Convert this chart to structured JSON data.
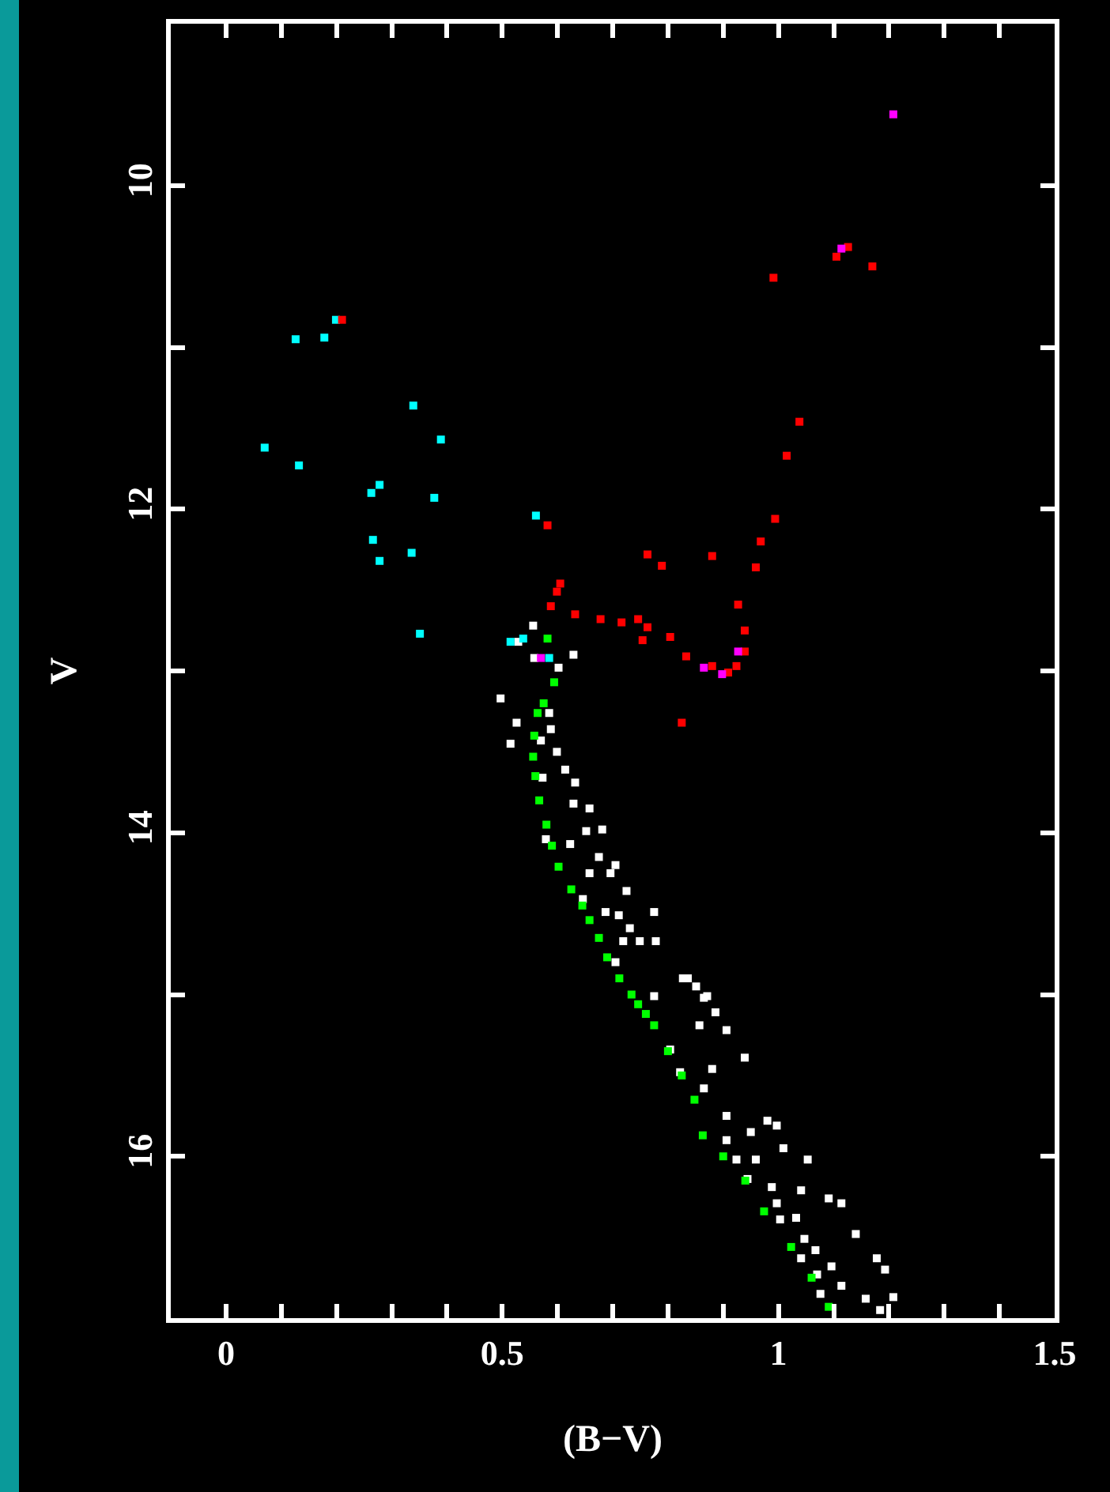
{
  "chart_data": {
    "type": "scatter",
    "xlabel": "(B−V)",
    "ylabel": "V",
    "xlim": [
      -0.1,
      1.5
    ],
    "ylim": [
      17,
      9
    ],
    "xticks": [
      {
        "value": -0.1,
        "label": null
      },
      0,
      {
        "value": 0.1,
        "label": null
      },
      {
        "value": 0.2,
        "label": null
      },
      {
        "value": 0.3,
        "label": null
      },
      {
        "value": 0.4,
        "label": null
      },
      0.5,
      {
        "value": 0.6,
        "label": null
      },
      {
        "value": 0.7,
        "label": null
      },
      {
        "value": 0.8,
        "label": null
      },
      {
        "value": 0.9,
        "label": null
      },
      1,
      {
        "value": 1.1,
        "label": null
      },
      {
        "value": 1.2,
        "label": null
      },
      {
        "value": 1.3,
        "label": null
      },
      {
        "value": 1.4,
        "label": null
      },
      1.5
    ],
    "yticks": [
      10,
      {
        "value": 11,
        "label": null
      },
      12,
      {
        "value": 13,
        "label": null
      },
      14,
      {
        "value": 15,
        "label": null
      },
      16
    ],
    "marker": "square",
    "series": [
      {
        "color": "#ffffff",
        "x": [
          0.556,
          0.529,
          0.558,
          0.629,
          0.602,
          0.497,
          0.585,
          0.588,
          0.526,
          0.515,
          0.57,
          0.599,
          0.614,
          0.632,
          0.573,
          0.629,
          0.658,
          0.652,
          0.681,
          0.579,
          0.623,
          0.675,
          0.705,
          0.696,
          0.658,
          0.725,
          0.646,
          0.687,
          0.711,
          0.775,
          0.731,
          0.719,
          0.749,
          0.778,
          0.705,
          0.836,
          0.851,
          0.775,
          0.865,
          0.827,
          0.871,
          0.886,
          0.857,
          0.906,
          0.804,
          0.939,
          0.88,
          0.822,
          0.865,
          0.906,
          0.98,
          0.997,
          0.906,
          0.95,
          1.009,
          0.924,
          0.959,
          1.053,
          0.944,
          0.988,
          1.041,
          1.091,
          0.997,
          1.114,
          1.003,
          1.032,
          1.14,
          1.047,
          1.067,
          1.041,
          1.178,
          1.096,
          1.193,
          1.07,
          1.114,
          1.158,
          1.208,
          1.076,
          1.184
        ],
        "values": [
          12.72,
          12.82,
          12.92,
          12.9,
          12.98,
          13.17,
          13.26,
          13.36,
          13.32,
          13.45,
          13.43,
          13.5,
          13.61,
          13.69,
          13.66,
          13.82,
          13.85,
          13.99,
          13.98,
          14.04,
          14.07,
          14.15,
          14.2,
          14.25,
          14.25,
          14.36,
          14.41,
          14.49,
          14.51,
          14.49,
          14.59,
          14.67,
          14.67,
          14.67,
          14.8,
          14.9,
          14.95,
          15.01,
          15.02,
          14.9,
          15.01,
          15.11,
          15.19,
          15.22,
          15.34,
          15.39,
          15.46,
          15.48,
          15.58,
          15.75,
          15.78,
          15.81,
          15.9,
          15.85,
          15.95,
          16.02,
          16.02,
          16.02,
          16.14,
          16.19,
          16.21,
          16.26,
          16.29,
          16.29,
          16.39,
          16.38,
          16.48,
          16.51,
          16.58,
          16.63,
          16.63,
          16.68,
          16.7,
          16.73,
          16.8,
          16.88,
          16.87,
          16.85,
          16.95
        ]
      },
      {
        "color": "#00ff00",
        "x": [
          0.582,
          0.594,
          0.575,
          0.564,
          0.558,
          0.556,
          0.56,
          0.567,
          0.58,
          0.59,
          0.602,
          0.625,
          0.645,
          0.658,
          0.675,
          0.69,
          0.712,
          0.734,
          0.746,
          0.76,
          0.775,
          0.8,
          0.825,
          0.848,
          0.863,
          0.9,
          0.94,
          0.974,
          1.023,
          1.06,
          1.091
        ],
        "values": [
          12.8,
          13.07,
          13.2,
          13.26,
          13.4,
          13.53,
          13.65,
          13.8,
          13.95,
          14.08,
          14.21,
          14.35,
          14.45,
          14.54,
          14.65,
          14.77,
          14.9,
          15.0,
          15.06,
          15.12,
          15.19,
          15.35,
          15.5,
          15.65,
          15.87,
          16.0,
          16.15,
          16.34,
          16.56,
          16.75,
          16.93
        ]
      },
      {
        "color": "#00ffff",
        "x": [
          0.126,
          0.178,
          0.199,
          0.339,
          0.389,
          0.07,
          0.132,
          0.278,
          0.263,
          0.377,
          0.561,
          0.266,
          0.336,
          0.278,
          0.351,
          0.515,
          0.538,
          0.585
        ],
        "values": [
          10.95,
          10.94,
          10.83,
          11.36,
          11.57,
          11.62,
          11.73,
          11.85,
          11.9,
          11.93,
          12.04,
          12.19,
          12.27,
          12.32,
          12.77,
          12.82,
          12.8,
          12.92
        ]
      },
      {
        "color": "#ff0000",
        "x": [
          1.126,
          1.105,
          1.17,
          0.991,
          1.038,
          1.015,
          0.994,
          0.968,
          0.582,
          0.763,
          0.789,
          0.88,
          0.959,
          0.605,
          0.599,
          0.927,
          0.588,
          0.632,
          0.678,
          0.716,
          0.746,
          0.763,
          0.754,
          0.804,
          0.939,
          0.833,
          0.88,
          0.939,
          0.924,
          0.909,
          0.825,
          0.21
        ],
        "values": [
          10.38,
          10.44,
          10.5,
          10.57,
          11.46,
          11.67,
          12.06,
          12.2,
          12.1,
          12.28,
          12.35,
          12.29,
          12.36,
          12.46,
          12.51,
          12.59,
          12.6,
          12.65,
          12.68,
          12.7,
          12.68,
          12.73,
          12.81,
          12.79,
          12.75,
          12.91,
          12.97,
          12.88,
          12.97,
          13.01,
          13.32,
          10.83
        ]
      },
      {
        "color": "#ff00ff",
        "x": [
          1.208,
          1.114,
          0.57,
          0.865,
          0.898,
          0.927
        ],
        "values": [
          9.56,
          10.39,
          12.92,
          12.98,
          13.02,
          12.88
        ]
      }
    ]
  }
}
